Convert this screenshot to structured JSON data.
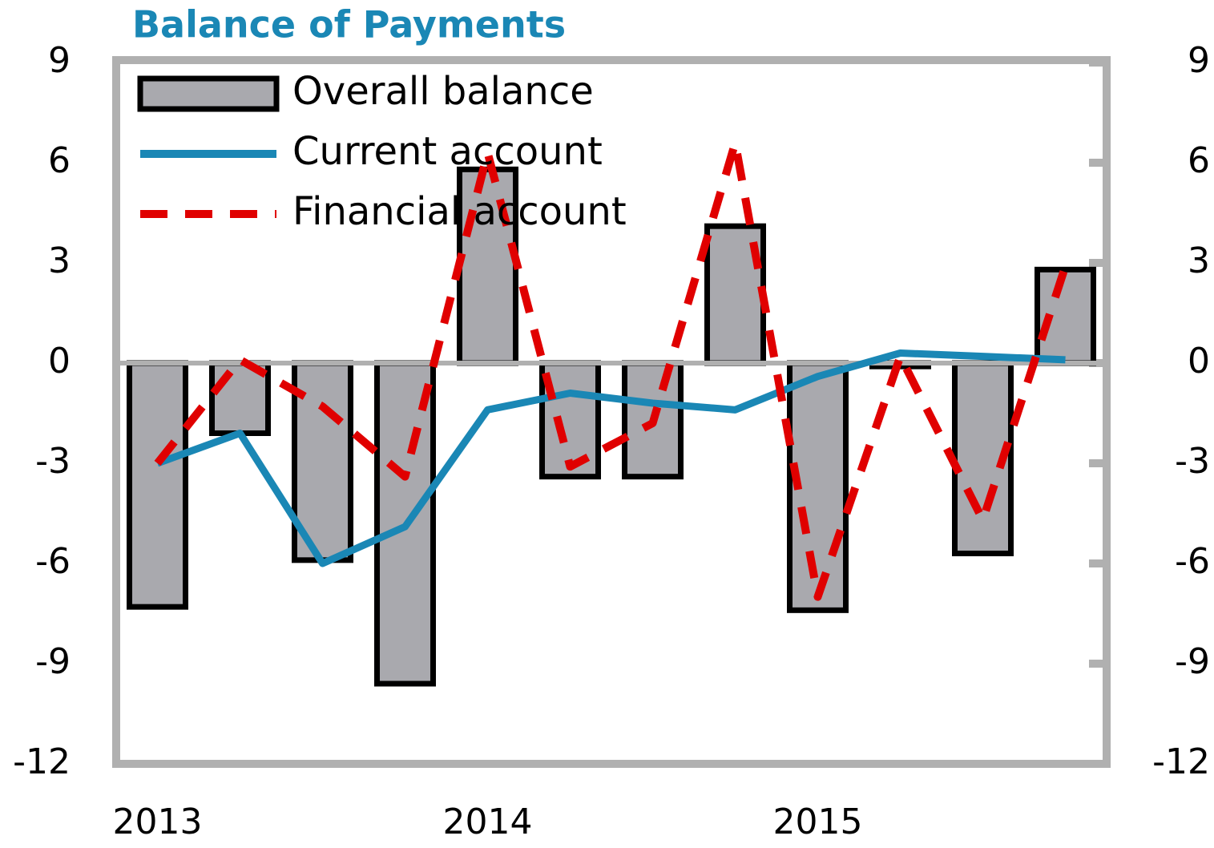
{
  "chart_data": {
    "type": "bar",
    "title": "Balance of Payments",
    "categories": [
      "2013",
      null,
      null,
      null,
      "2014",
      null,
      null,
      null,
      "2015",
      null,
      null,
      null
    ],
    "series": [
      {
        "name": "Overall balance",
        "type": "bar",
        "color": "#a9a9ae",
        "values": [
          -7.3,
          -2.1,
          -5.9,
          -9.6,
          5.8,
          -3.4,
          -3.4,
          4.1,
          -7.4,
          -0.1,
          -5.7,
          2.8
        ]
      },
      {
        "name": "Current account",
        "type": "line",
        "color": "#1a87b5",
        "values": [
          -3.0,
          -2.1,
          -6.0,
          -4.9,
          -1.4,
          -0.9,
          -1.2,
          -1.4,
          -0.4,
          0.3,
          0.2,
          0.1
        ]
      },
      {
        "name": "Financial account",
        "type": "dashed-line",
        "color": "#e00000",
        "values": [
          -3.0,
          0.1,
          -1.3,
          -3.4,
          6.3,
          -3.1,
          -1.8,
          6.6,
          -7.0,
          0.2,
          -4.7,
          2.9
        ]
      }
    ],
    "ylim": [
      -12,
      9
    ],
    "yticks": [
      -12,
      -9,
      -6,
      -3,
      0,
      3,
      6,
      9
    ]
  }
}
